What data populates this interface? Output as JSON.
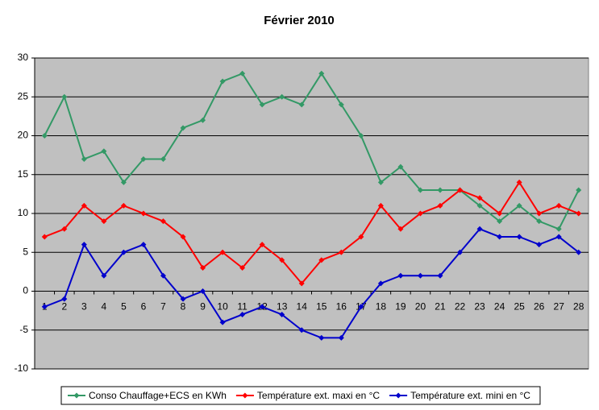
{
  "chart_data": {
    "type": "line",
    "title": "Février 2010",
    "categories": [
      "1",
      "2",
      "3",
      "4",
      "5",
      "6",
      "7",
      "8",
      "9",
      "10",
      "11",
      "12",
      "13",
      "14",
      "15",
      "16",
      "17",
      "18",
      "19",
      "20",
      "21",
      "22",
      "23",
      "24",
      "25",
      "26",
      "27",
      "28"
    ],
    "series": [
      {
        "name": "Conso Chauffage+ECS en KWh",
        "color": "#339966",
        "values": [
          20,
          25,
          17,
          18,
          14,
          17,
          17,
          21,
          22,
          27,
          28,
          24,
          25,
          24,
          28,
          24,
          20,
          14,
          16,
          13,
          13,
          13,
          11,
          9,
          11,
          9,
          8,
          13
        ]
      },
      {
        "name": "Température ext. maxi en °C",
        "color": "#ff0000",
        "values": [
          7,
          8,
          11,
          9,
          11,
          10,
          9,
          7,
          3,
          5,
          3,
          6,
          4,
          1,
          4,
          5,
          7,
          11,
          8,
          10,
          11,
          13,
          12,
          10,
          14,
          10,
          11,
          10
        ]
      },
      {
        "name": "Température ext. mini en °C",
        "color": "#0000cc",
        "values": [
          -2,
          -1,
          6,
          2,
          5,
          6,
          2,
          -1,
          0,
          -4,
          -3,
          -2,
          -3,
          -5,
          -6,
          -6,
          -2,
          1,
          2,
          2,
          2,
          5,
          8,
          7,
          7,
          6,
          7,
          5
        ]
      }
    ],
    "ylim": [
      -10,
      30
    ],
    "yticks": [
      -10,
      -5,
      0,
      5,
      10,
      15,
      20,
      25,
      30
    ],
    "grid": true,
    "legend": "bottom"
  }
}
